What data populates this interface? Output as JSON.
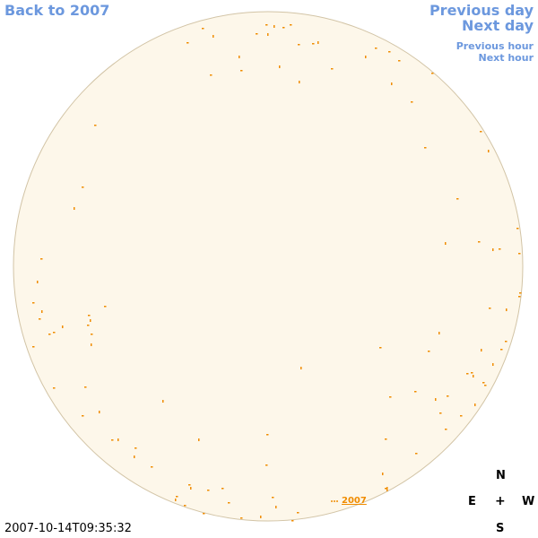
{
  "nav": {
    "back_label": "Back to 2007",
    "previous_day": "Previous day",
    "next_day": "Next day",
    "previous_hour": "Previous hour",
    "next_hour": "Next hour"
  },
  "timestamp": "2007-10-14T09:35:32",
  "compass": {
    "north": "N",
    "east": "E",
    "center": "+",
    "west": "W",
    "south": "S"
  },
  "sky": {
    "year_label": "2007",
    "colors": {
      "disk_fill": "#fdf7ea",
      "disk_stroke": "#d2c4a6",
      "mark": "#f08c00",
      "link": "#6c98de"
    }
  }
}
